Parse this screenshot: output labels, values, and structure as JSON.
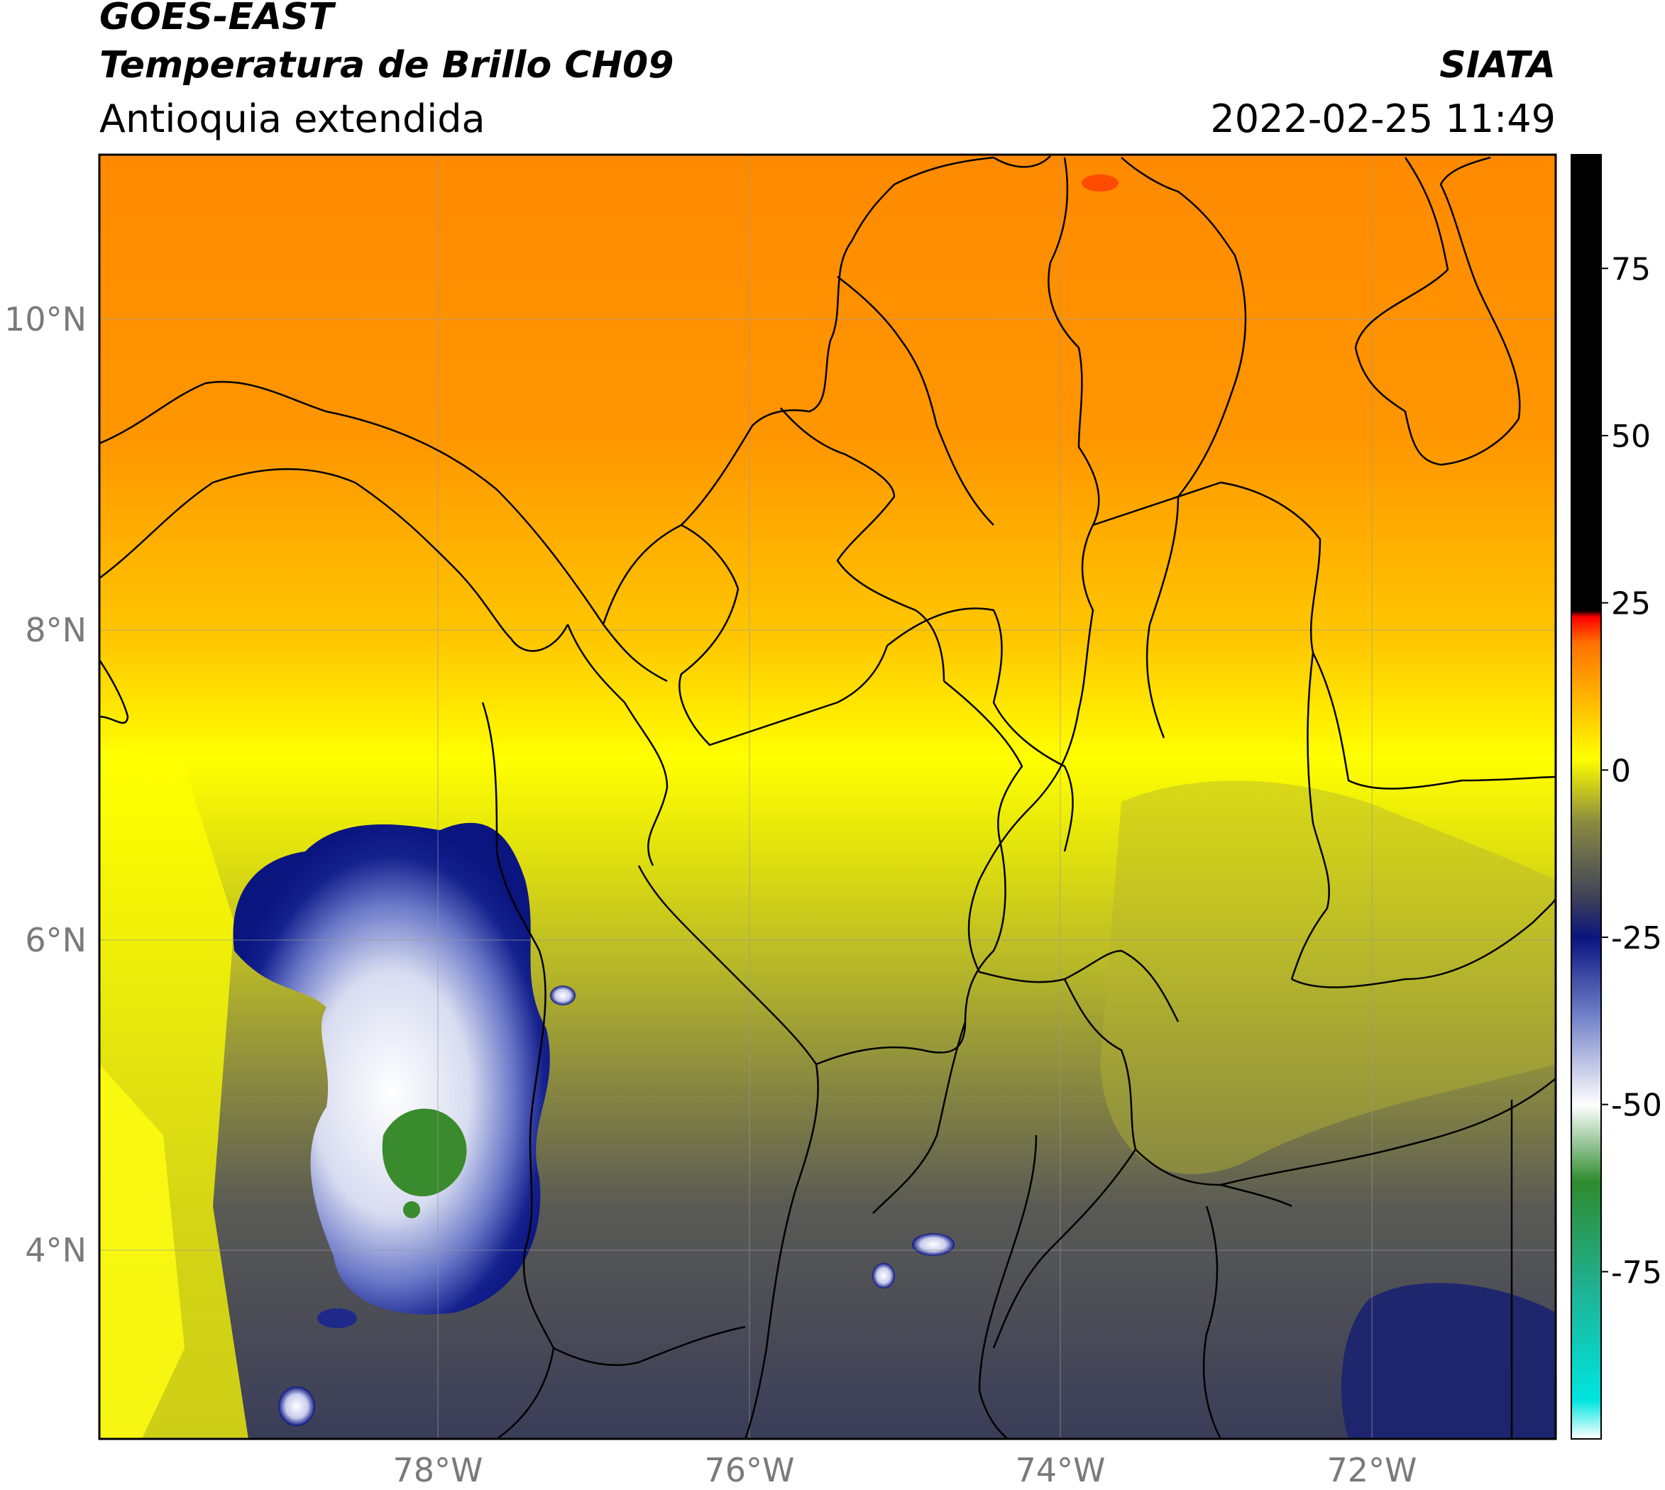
{
  "header": {
    "satellite": "GOES-EAST",
    "product": "Temperatura de Brillo CH09",
    "region": "Antioquia extendida",
    "organization": "SIATA",
    "timestamp": "2022-02-25 11:49"
  },
  "map": {
    "lat_labels": [
      "10°N",
      "8°N",
      "6°N",
      "4°N"
    ],
    "lon_labels": [
      "78°W",
      "76°W",
      "74°W",
      "72°W"
    ],
    "lat_range": [
      2.7,
      11.0
    ],
    "lon_range": [
      -80.2,
      -70.8
    ],
    "scale_colors": {
      "warm_orange": "#ff8c00",
      "yellow": "#ffff00",
      "olive": "#a8a830",
      "slate": "#3c3f5a",
      "navy": "#0a1580",
      "white": "#ffffff",
      "green": "#2e8b2e"
    }
  },
  "colorbar": {
    "ticks": [
      "75",
      "50",
      "25",
      "0",
      "-25",
      "-50",
      "-75"
    ],
    "tick_values": [
      75,
      50,
      25,
      0,
      -25,
      -50,
      -75
    ],
    "range": [
      -100,
      92
    ]
  }
}
